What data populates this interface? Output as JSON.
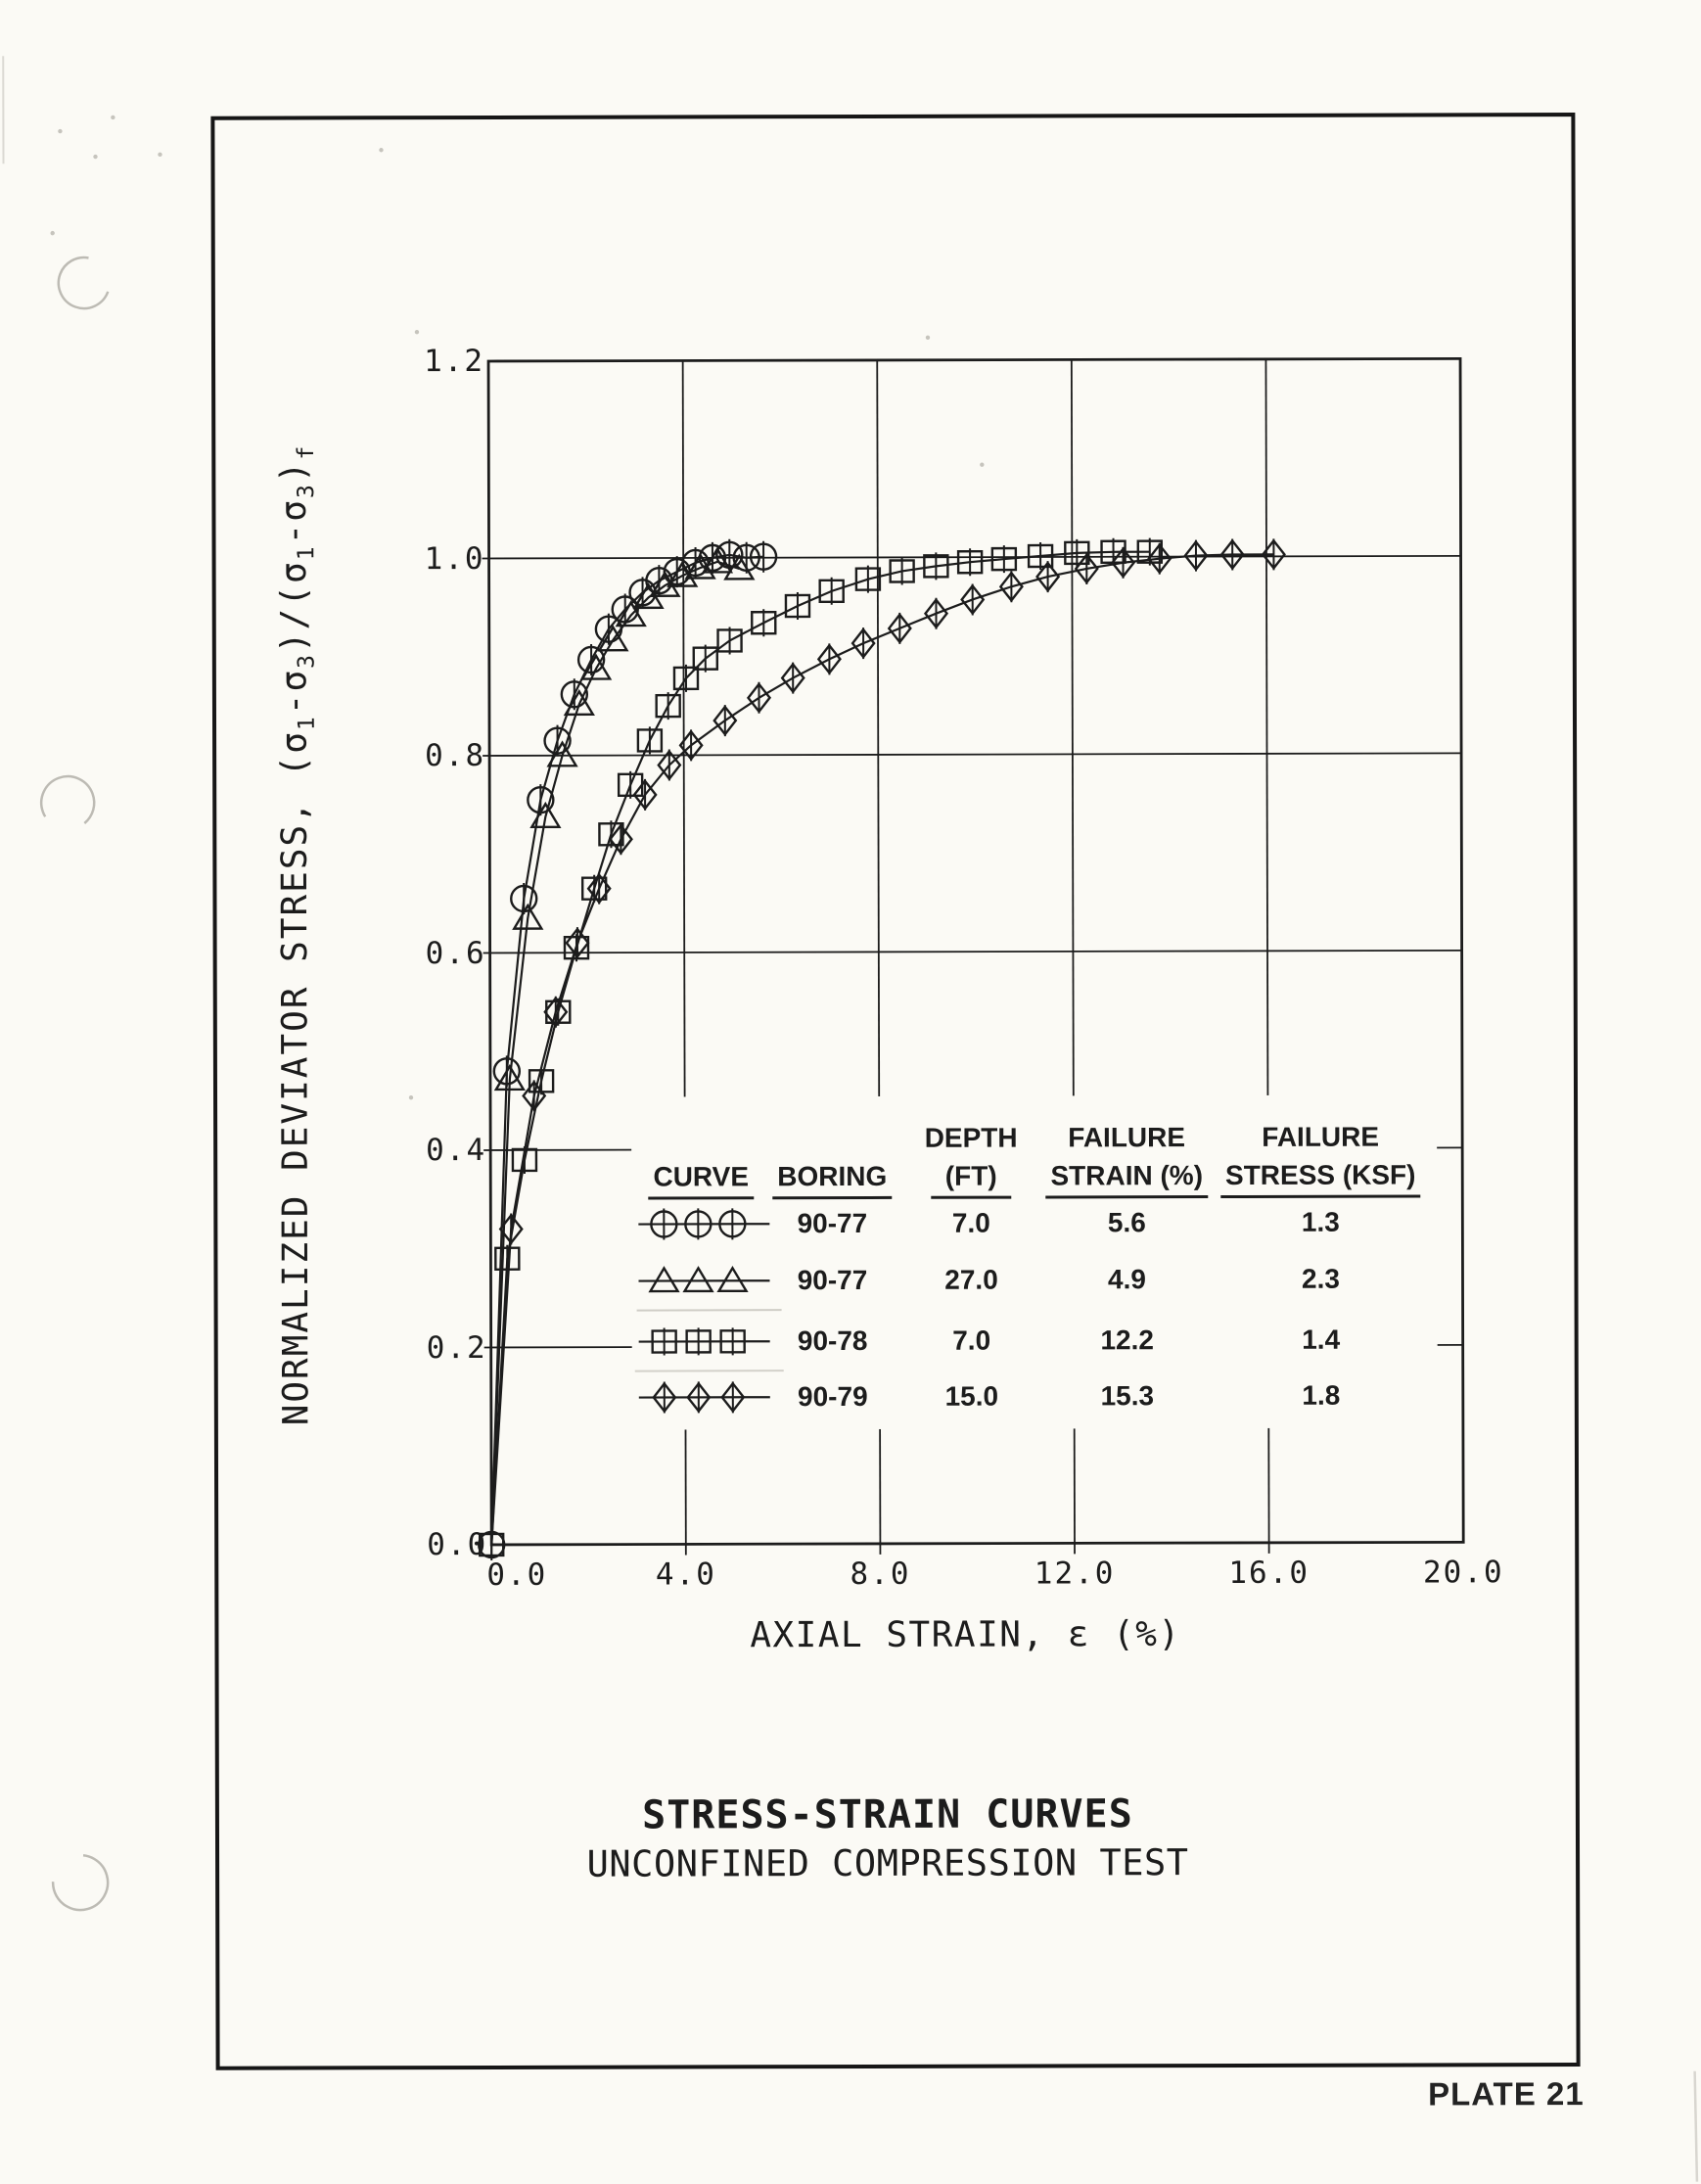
{
  "colors": {
    "ink": "#1c1c1c",
    "paper": "#fbfaf5",
    "artifact_gray": "#bdbbb4"
  },
  "page": {
    "plate_label": "PLATE 21"
  },
  "chart_data": {
    "type": "line",
    "title": "STRESS-STRAIN CURVES",
    "subtitle": "UNCONFINED COMPRESSION TEST",
    "xlabel": "AXIAL STRAIN, ε (%)",
    "ylabel": "NORMALIZED DEVIATOR STRESS, (σ₁-σ₃)/(σ₁-σ₃)f",
    "ylabel_parts": [
      {
        "t": "NORMALIZED DEVIATOR STRESS, (σ"
      },
      {
        "t": "1",
        "sub": true
      },
      {
        "t": "-σ"
      },
      {
        "t": "3",
        "sub": true
      },
      {
        "t": ")/(σ"
      },
      {
        "t": "1",
        "sub": true
      },
      {
        "t": "-σ"
      },
      {
        "t": "3",
        "sub": true
      },
      {
        "t": ")"
      },
      {
        "t": "f",
        "sub": true
      }
    ],
    "xlim": [
      0,
      20
    ],
    "ylim": [
      0,
      1.2
    ],
    "grid": true,
    "legend_position": "inside lower right",
    "xtick_values": [
      0,
      4,
      8,
      12,
      16,
      20
    ],
    "xtick_labels": [
      "0.0",
      "4.0",
      "8.0",
      "12.0",
      "16.0",
      "20.0"
    ],
    "ytick_values": [
      0,
      0.2,
      0.4,
      0.6,
      0.8,
      1.0,
      1.2
    ],
    "ytick_labels": [
      "0.0",
      "0.2",
      "0.4",
      "0.6",
      "0.8",
      "1.0",
      "1.2"
    ],
    "series": [
      {
        "name": "Boring 90-77, depth 7.0 ft",
        "marker": "circle",
        "origin_marker": true,
        "failure_strain_pct": 5.6,
        "failure_stress_ksf": 1.3,
        "points": [
          [
            0,
            0
          ],
          [
            0.34,
            0.48
          ],
          [
            0.7,
            0.655
          ],
          [
            1.05,
            0.755
          ],
          [
            1.4,
            0.815
          ],
          [
            1.75,
            0.862
          ],
          [
            2.1,
            0.897
          ],
          [
            2.46,
            0.928
          ],
          [
            2.8,
            0.948
          ],
          [
            3.16,
            0.965
          ],
          [
            3.5,
            0.977
          ],
          [
            3.87,
            0.986
          ],
          [
            4.25,
            0.995
          ],
          [
            4.6,
            1.0
          ],
          [
            4.95,
            1.003
          ],
          [
            5.3,
            1.0
          ],
          [
            5.65,
            1.001
          ]
        ]
      },
      {
        "name": "Boring 90-77, depth 27.0 ft",
        "marker": "triangle",
        "origin_marker": false,
        "failure_strain_pct": 4.9,
        "failure_stress_ksf": 2.3,
        "points": [
          [
            0,
            0
          ],
          [
            0.4,
            0.472
          ],
          [
            0.78,
            0.635
          ],
          [
            1.15,
            0.738
          ],
          [
            1.5,
            0.8
          ],
          [
            1.85,
            0.852
          ],
          [
            2.2,
            0.888
          ],
          [
            2.55,
            0.917
          ],
          [
            2.92,
            0.942
          ],
          [
            3.28,
            0.96
          ],
          [
            3.62,
            0.972
          ],
          [
            3.98,
            0.982
          ],
          [
            4.35,
            0.99
          ],
          [
            4.7,
            0.996
          ],
          [
            5.15,
            0.989
          ]
        ]
      },
      {
        "name": "Boring 90-78, depth 7.0 ft",
        "marker": "square",
        "origin_marker": true,
        "failure_strain_pct": 12.2,
        "failure_stress_ksf": 1.4,
        "points": [
          [
            0,
            0
          ],
          [
            0.34,
            0.29
          ],
          [
            0.7,
            0.39
          ],
          [
            1.05,
            0.47
          ],
          [
            1.4,
            0.54
          ],
          [
            1.78,
            0.605
          ],
          [
            2.15,
            0.665
          ],
          [
            2.5,
            0.72
          ],
          [
            2.9,
            0.77
          ],
          [
            3.3,
            0.815
          ],
          [
            3.68,
            0.85
          ],
          [
            4.05,
            0.878
          ],
          [
            4.45,
            0.898
          ],
          [
            4.95,
            0.916
          ],
          [
            5.65,
            0.934
          ],
          [
            6.35,
            0.951
          ],
          [
            7.05,
            0.966
          ],
          [
            7.8,
            0.978
          ],
          [
            8.5,
            0.986
          ],
          [
            9.2,
            0.991
          ],
          [
            9.9,
            0.995
          ],
          [
            10.6,
            0.998
          ],
          [
            11.35,
            1.001
          ],
          [
            12.1,
            1.004
          ],
          [
            12.85,
            1.005
          ],
          [
            13.6,
            1.005
          ]
        ]
      },
      {
        "name": "Boring 90-79, depth 15.0 ft",
        "marker": "diamond",
        "origin_marker": false,
        "failure_strain_pct": 15.3,
        "failure_stress_ksf": 1.8,
        "points": [
          [
            0,
            0
          ],
          [
            0.42,
            0.32
          ],
          [
            0.9,
            0.455
          ],
          [
            1.35,
            0.54
          ],
          [
            1.8,
            0.61
          ],
          [
            2.25,
            0.665
          ],
          [
            2.7,
            0.715
          ],
          [
            3.2,
            0.76
          ],
          [
            3.7,
            0.79
          ],
          [
            4.15,
            0.81
          ],
          [
            4.85,
            0.835
          ],
          [
            5.55,
            0.858
          ],
          [
            6.25,
            0.878
          ],
          [
            7.0,
            0.897
          ],
          [
            7.7,
            0.913
          ],
          [
            8.45,
            0.928
          ],
          [
            9.2,
            0.943
          ],
          [
            9.95,
            0.957
          ],
          [
            10.75,
            0.97
          ],
          [
            11.5,
            0.98
          ],
          [
            12.3,
            0.988
          ],
          [
            13.05,
            0.994
          ],
          [
            13.8,
            0.998
          ],
          [
            14.55,
            1.001
          ],
          [
            15.3,
            1.002
          ],
          [
            16.15,
            1.002
          ]
        ]
      }
    ]
  },
  "legend_table": {
    "headers": [
      {
        "line1": "",
        "line2": "CURVE"
      },
      {
        "line1": "",
        "line2": "BORING"
      },
      {
        "line1": "DEPTH",
        "line2": "(FT)"
      },
      {
        "line1": "FAILURE",
        "line2": "STRAIN (%)"
      },
      {
        "line1": "FAILURE",
        "line2": "STRESS (KSF)"
      }
    ],
    "rows": [
      {
        "marker": "circle",
        "boring": "90-77",
        "depth": "7.0",
        "failure_strain": "5.6",
        "failure_stress": "1.3"
      },
      {
        "marker": "triangle",
        "boring": "90-77",
        "depth": "27.0",
        "failure_strain": "4.9",
        "failure_stress": "2.3"
      },
      {
        "marker": "square",
        "boring": "90-78",
        "depth": "7.0",
        "failure_strain": "12.2",
        "failure_stress": "1.4"
      },
      {
        "marker": "diamond",
        "boring": "90-79",
        "depth": "15.0",
        "failure_strain": "15.3",
        "failure_stress": "1.8"
      }
    ]
  }
}
